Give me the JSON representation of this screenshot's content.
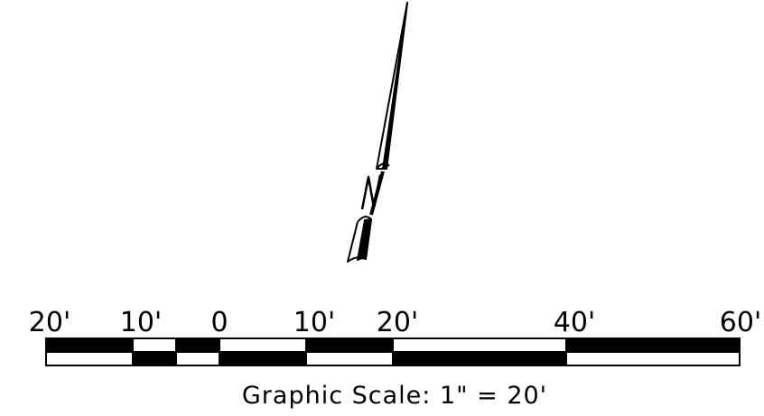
{
  "scale_bar": {
    "tick_labels": [
      "20'",
      "10'",
      "0",
      "10'",
      "20'",
      "40'",
      "60'"
    ],
    "caption": "Graphic Scale: 1\" = 20'"
  },
  "north_arrow": {
    "icon": "north-arrow-icon"
  },
  "colors": {
    "ink": "#000000",
    "paper": "#ffffff"
  }
}
